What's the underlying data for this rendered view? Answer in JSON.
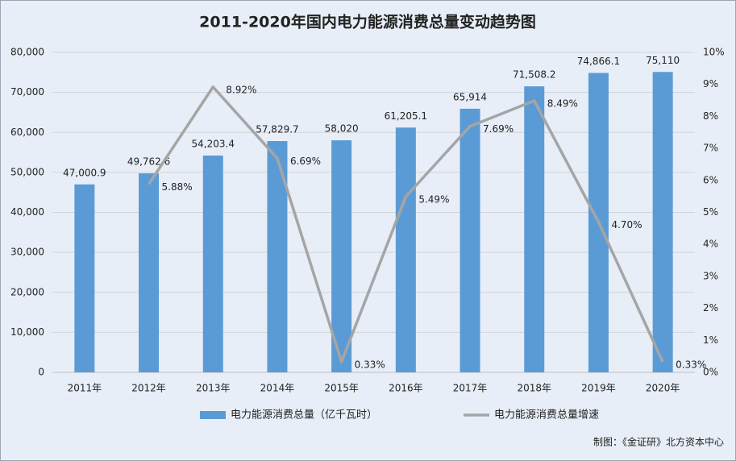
{
  "chart_data": {
    "type": "bar_line",
    "title": "2011-2020年国内电力能源消费总量变动趋势图",
    "categories": [
      "2011年",
      "2012年",
      "2013年",
      "2014年",
      "2015年",
      "2016年",
      "2017年",
      "2018年",
      "2019年",
      "2020年"
    ],
    "series": [
      {
        "name": "电力能源消费总量（亿千瓦时）",
        "color": "#5b9bd5",
        "type": "bar",
        "values": [
          47000.9,
          49762.6,
          54203.4,
          57829.7,
          58020,
          61205.1,
          65914,
          71508.2,
          74866.1,
          75110
        ],
        "value_labels": [
          "47,000.9",
          "49,762.6",
          "54,203.4",
          "57,829.7",
          "58,020",
          "61,205.1",
          "65,914",
          "71,508.2",
          "74,866.1",
          "75,110"
        ]
      },
      {
        "name": "电力能源消费总量增速",
        "color": "#a5a5a5",
        "type": "line",
        "axis": "y2",
        "values": [
          null,
          5.88,
          8.92,
          6.69,
          0.33,
          5.49,
          7.69,
          8.49,
          4.7,
          0.33
        ],
        "value_labels": [
          null,
          "5.88%",
          "8.92%",
          "6.69%",
          "0.33%",
          "5.49%",
          "7.69%",
          "8.49%",
          "4.70%",
          "0.33%"
        ]
      }
    ],
    "ylim": [
      0,
      80000
    ],
    "yticks": [
      0,
      {
        "value": 10000,
        "label": "10,000"
      },
      {
        "value": 20000,
        "label": "20,000"
      },
      {
        "value": 30000,
        "label": "30,000"
      },
      {
        "value": 40000,
        "label": "40,000"
      },
      {
        "value": 50000,
        "label": "50,000"
      },
      {
        "value": 60000,
        "label": "60,000"
      },
      {
        "value": 70000,
        "label": "70,000"
      },
      {
        "value": 80000,
        "label": "80,000"
      }
    ],
    "y2lim": [
      0,
      10
    ],
    "y2ticks": [
      {
        "value": 0,
        "label": "0%"
      },
      {
        "value": 1,
        "label": "1%"
      },
      {
        "value": 2,
        "label": "2%"
      },
      {
        "value": 3,
        "label": "3%"
      },
      {
        "value": 4,
        "label": "4%"
      },
      {
        "value": 5,
        "label": "5%"
      },
      {
        "value": 6,
        "label": "6%"
      },
      {
        "value": 7,
        "label": "7%"
      },
      {
        "value": 8,
        "label": "8%"
      },
      {
        "value": 9,
        "label": "9%"
      },
      {
        "value": 10,
        "label": "10%"
      }
    ],
    "grid": true,
    "legend": "bottom",
    "source": "制图：《金证研》北方资本中心"
  }
}
